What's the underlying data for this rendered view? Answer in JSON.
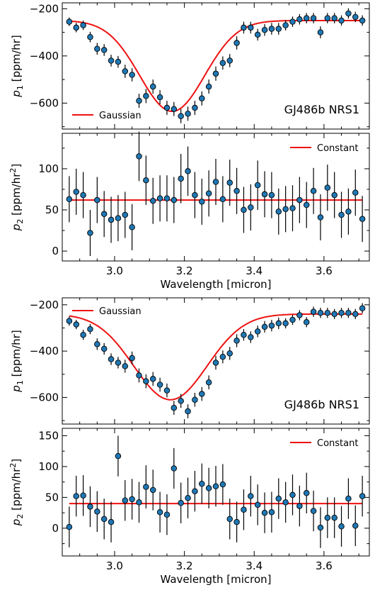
{
  "chart_data": [
    {
      "type": "scatter",
      "panel_label": "GJ486b NRS1",
      "xlabel": "Wavelength [micron]",
      "show_xlabel": false,
      "ylabel_sym": "p",
      "ylabel_sub": "1",
      "ylabel_unit": " [ppm/hr]",
      "ylabel_sup": "",
      "xlim": [
        2.85,
        3.73
      ],
      "ylim": [
        -710,
        -175
      ],
      "yticks": [
        -200,
        -400,
        -600
      ],
      "yticklabels": [
        "−200",
        "−400",
        "−600"
      ],
      "xticks": [
        3.0,
        3.2,
        3.4,
        3.6
      ],
      "xticklabels": [
        "3.0",
        "3.2",
        "3.4",
        "3.6"
      ],
      "legend": "bottom-left",
      "fit": {
        "name": "Gaussian",
        "model": "gaussian",
        "base": -250,
        "amp": -385,
        "center": 3.165,
        "sigma": 0.093
      },
      "x": [
        2.87,
        2.89,
        2.91,
        2.93,
        2.95,
        2.97,
        2.99,
        3.01,
        3.03,
        3.05,
        3.07,
        3.09,
        3.11,
        3.13,
        3.15,
        3.17,
        3.19,
        3.21,
        3.23,
        3.25,
        3.27,
        3.29,
        3.31,
        3.33,
        3.35,
        3.37,
        3.39,
        3.41,
        3.43,
        3.45,
        3.47,
        3.49,
        3.51,
        3.53,
        3.55,
        3.57,
        3.59,
        3.61,
        3.63,
        3.65,
        3.67,
        3.69,
        3.71
      ],
      "y": [
        -255,
        -280,
        -270,
        -320,
        -370,
        -375,
        -420,
        -425,
        -465,
        -480,
        -590,
        -570,
        -530,
        -575,
        -620,
        -625,
        -655,
        -645,
        -620,
        -580,
        -530,
        -475,
        -430,
        -420,
        -345,
        -280,
        -280,
        -310,
        -290,
        -285,
        -285,
        -270,
        -255,
        -245,
        -240,
        -240,
        -300,
        -240,
        -240,
        -250,
        -220,
        -235,
        -250
      ],
      "err": [
        18,
        20,
        20,
        22,
        25,
        25,
        25,
        25,
        28,
        28,
        30,
        30,
        30,
        30,
        30,
        30,
        30,
        30,
        30,
        30,
        30,
        30,
        28,
        28,
        28,
        25,
        25,
        25,
        25,
        25,
        25,
        22,
        22,
        22,
        22,
        22,
        25,
        22,
        22,
        22,
        22,
        22,
        22
      ]
    },
    {
      "type": "scatter",
      "xlabel": "Wavelength [micron]",
      "show_xlabel": true,
      "ylabel_sym": "p",
      "ylabel_sub": "2",
      "ylabel_unit": " [ppm/hr",
      "ylabel_sup": "2",
      "xlim": [
        2.85,
        3.73
      ],
      "ylim": [
        -12,
        143
      ],
      "yticks": [
        0,
        50,
        100
      ],
      "yticklabels": [
        "0",
        "50",
        "100"
      ],
      "xticks": [
        3.0,
        3.2,
        3.4,
        3.6
      ],
      "xticklabels": [
        "3.0",
        "3.2",
        "3.4",
        "3.6"
      ],
      "legend": "top-right",
      "fit": {
        "name": "Constant",
        "model": "constant",
        "value": 62
      },
      "x": [
        2.87,
        2.89,
        2.91,
        2.93,
        2.95,
        2.97,
        2.99,
        3.01,
        3.03,
        3.05,
        3.07,
        3.09,
        3.11,
        3.13,
        3.15,
        3.17,
        3.19,
        3.21,
        3.23,
        3.25,
        3.27,
        3.29,
        3.31,
        3.33,
        3.35,
        3.37,
        3.39,
        3.41,
        3.43,
        3.45,
        3.47,
        3.49,
        3.51,
        3.53,
        3.55,
        3.57,
        3.59,
        3.61,
        3.63,
        3.65,
        3.67,
        3.69,
        3.71
      ],
      "y": [
        63,
        72,
        68,
        22,
        62,
        45,
        38,
        40,
        44,
        29,
        115,
        86,
        61,
        64,
        64,
        62,
        88,
        97,
        68,
        60,
        70,
        84,
        63,
        83,
        73,
        50,
        53,
        80,
        69,
        68,
        48,
        51,
        52,
        62,
        56,
        73,
        41,
        77,
        68,
        44,
        48,
        71,
        39
      ],
      "err": [
        28,
        28,
        28,
        28,
        28,
        28,
        28,
        28,
        28,
        28,
        30,
        30,
        28,
        28,
        28,
        28,
        30,
        30,
        28,
        28,
        28,
        28,
        28,
        28,
        28,
        28,
        28,
        30,
        28,
        28,
        28,
        28,
        28,
        28,
        28,
        28,
        28,
        28,
        28,
        28,
        28,
        28,
        28
      ]
    },
    {
      "type": "scatter",
      "panel_label": "GJ486b NRS1",
      "xlabel": "Wavelength [micron]",
      "show_xlabel": false,
      "ylabel_sym": "p",
      "ylabel_sub": "1",
      "ylabel_unit": " [ppm/hr]",
      "ylabel_sup": "",
      "xlim": [
        2.85,
        3.73
      ],
      "ylim": [
        -715,
        -170
      ],
      "yticks": [
        -200,
        -400,
        -600
      ],
      "yticklabels": [
        "−200",
        "−400",
        "−600"
      ],
      "xticks": [
        3.0,
        3.2,
        3.4,
        3.6
      ],
      "xticklabels": [
        "3.0",
        "3.2",
        "3.4",
        "3.6"
      ],
      "legend": "top-left",
      "fit": {
        "name": "Gaussian",
        "model": "gaussian",
        "base": -240,
        "amp": -370,
        "center": 3.16,
        "sigma": 0.105
      },
      "x": [
        2.87,
        2.89,
        2.91,
        2.93,
        2.95,
        2.97,
        2.99,
        3.01,
        3.03,
        3.05,
        3.07,
        3.09,
        3.11,
        3.13,
        3.15,
        3.17,
        3.19,
        3.21,
        3.23,
        3.25,
        3.27,
        3.29,
        3.31,
        3.33,
        3.35,
        3.37,
        3.39,
        3.41,
        3.43,
        3.45,
        3.47,
        3.49,
        3.51,
        3.53,
        3.55,
        3.57,
        3.59,
        3.61,
        3.63,
        3.65,
        3.67,
        3.69,
        3.71
      ],
      "y": [
        -270,
        -285,
        -330,
        -305,
        -370,
        -390,
        -435,
        -450,
        -465,
        -430,
        -505,
        -530,
        -520,
        -545,
        -570,
        -645,
        -615,
        -660,
        -610,
        -585,
        -535,
        -450,
        -425,
        -410,
        -355,
        -330,
        -340,
        -315,
        -295,
        -290,
        -280,
        -280,
        -265,
        -245,
        -275,
        -230,
        -235,
        -235,
        -240,
        -235,
        -235,
        -240,
        -215
      ],
      "err": [
        20,
        20,
        22,
        22,
        25,
        25,
        25,
        25,
        28,
        28,
        30,
        30,
        30,
        30,
        30,
        30,
        30,
        30,
        30,
        30,
        30,
        30,
        28,
        28,
        28,
        25,
        25,
        25,
        25,
        25,
        25,
        22,
        22,
        22,
        22,
        22,
        22,
        22,
        22,
        22,
        22,
        22,
        22
      ]
    },
    {
      "type": "scatter",
      "xlabel": "Wavelength [micron]",
      "show_xlabel": true,
      "ylabel_sym": "p",
      "ylabel_sub": "2",
      "ylabel_unit": " [ppm/hr",
      "ylabel_sup": "2",
      "xlim": [
        2.85,
        3.73
      ],
      "ylim": [
        -45,
        162
      ],
      "yticks": [
        0,
        50,
        100,
        150
      ],
      "yticklabels": [
        "0",
        "50",
        "100",
        "150"
      ],
      "xticks": [
        3.0,
        3.2,
        3.4,
        3.6
      ],
      "xticklabels": [
        "3.0",
        "3.2",
        "3.4",
        "3.6"
      ],
      "legend": "top-right",
      "fit": {
        "name": "Constant",
        "model": "constant",
        "value": 40
      },
      "x": [
        2.87,
        2.89,
        2.91,
        2.93,
        2.95,
        2.97,
        2.99,
        3.01,
        3.03,
        3.05,
        3.07,
        3.09,
        3.11,
        3.13,
        3.15,
        3.17,
        3.19,
        3.21,
        3.23,
        3.25,
        3.27,
        3.29,
        3.31,
        3.33,
        3.35,
        3.37,
        3.39,
        3.41,
        3.43,
        3.45,
        3.47,
        3.49,
        3.51,
        3.53,
        3.55,
        3.57,
        3.59,
        3.61,
        3.63,
        3.65,
        3.67,
        3.69,
        3.71
      ],
      "y": [
        2,
        52,
        53,
        35,
        27,
        15,
        10,
        117,
        45,
        47,
        42,
        67,
        62,
        26,
        22,
        97,
        41,
        49,
        60,
        72,
        65,
        68,
        71,
        15,
        10,
        30,
        52,
        38,
        25,
        26,
        48,
        42,
        54,
        36,
        57,
        28,
        1,
        17,
        17,
        3,
        48,
        4,
        52
      ],
      "err": [
        33,
        33,
        33,
        33,
        33,
        33,
        33,
        33,
        33,
        33,
        33,
        35,
        33,
        33,
        33,
        33,
        33,
        33,
        33,
        33,
        33,
        33,
        33,
        33,
        33,
        33,
        33,
        33,
        33,
        33,
        33,
        33,
        33,
        33,
        33,
        33,
        33,
        33,
        33,
        33,
        33,
        33,
        33
      ]
    }
  ]
}
